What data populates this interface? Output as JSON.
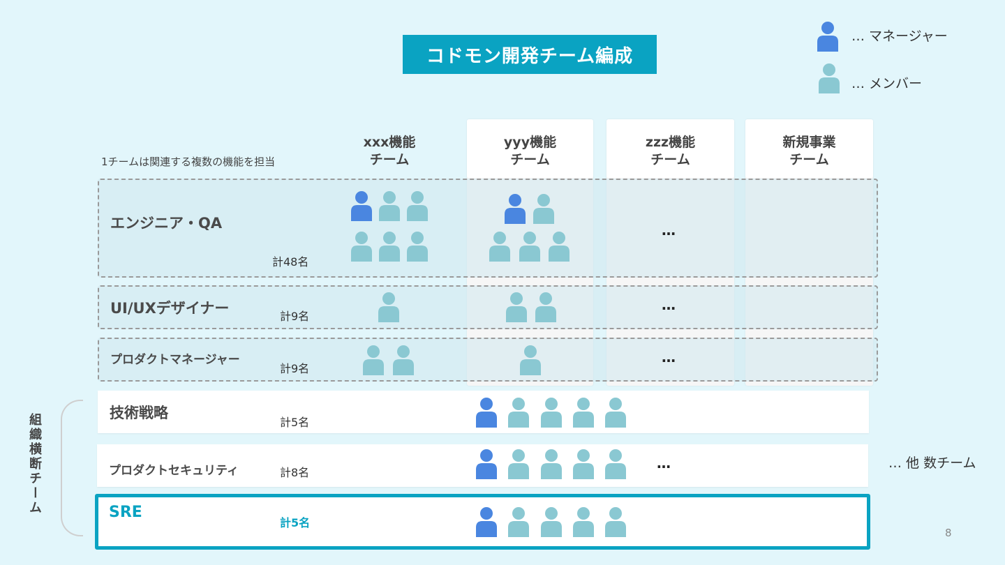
{
  "title": "コドモン開発チーム編成",
  "legend": {
    "manager": "… マネージャー",
    "member": "… メンバー",
    "manager_color": "#4a86e0",
    "member_color": "#8ac8d2"
  },
  "note": "1チームは関連する複数の機能を担当",
  "columns": [
    {
      "line1": "xxx機能",
      "line2": "チーム"
    },
    {
      "line1": "yyy機能",
      "line2": "チーム"
    },
    {
      "line1": "zzz機能",
      "line2": "チーム"
    },
    {
      "line1": "新規事業",
      "line2": "チーム"
    }
  ],
  "function_rows": [
    {
      "label": "エンジニア・QA",
      "count": "計48名",
      "ellipsis": "…"
    },
    {
      "label": "UI/UXデザイナー",
      "count": "計9名",
      "ellipsis": "…"
    },
    {
      "label": "プロダクトマネージャー",
      "count": "計9名",
      "ellipsis": "…"
    }
  ],
  "cross_label": "組織横断チーム",
  "cross_rows": [
    {
      "label": "技術戦略",
      "count": "計5名"
    },
    {
      "label": "プロダクトセキュリティ",
      "count": "計8名",
      "ellipsis": "…"
    },
    {
      "label": "SRE",
      "count": "計5名"
    }
  ],
  "others": "… 他 数チーム",
  "page_number": "8"
}
